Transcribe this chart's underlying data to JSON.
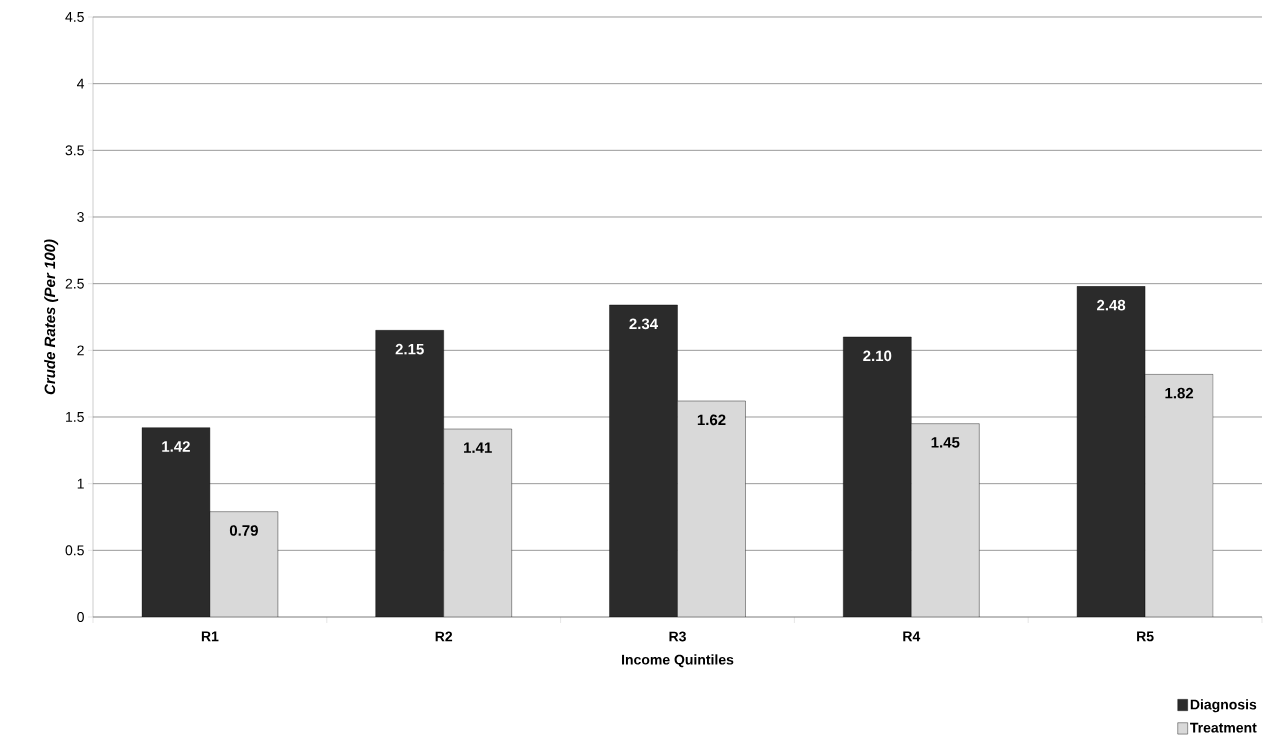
{
  "chart_data": {
    "type": "bar",
    "xlabel": "Income Quintiles",
    "ylabel": "*Crude Rates (Per 100)*",
    "categories": [
      "R1",
      "R2",
      "R3",
      "R4",
      "R5"
    ],
    "series": [
      {
        "name": "Diagnosis",
        "color": "#2b2b2b",
        "values": [
          1.42,
          2.15,
          2.34,
          2.1,
          2.48
        ],
        "value_labels": [
          "1.42",
          "2.15",
          "2.34",
          "2.10",
          "2.48"
        ]
      },
      {
        "name": "Treatment",
        "color": "#d9d9d9",
        "values": [
          0.79,
          1.41,
          1.62,
          1.45,
          1.82
        ],
        "value_labels": [
          "0.79",
          "1.41",
          "1.62",
          "1.45",
          "1.82"
        ]
      }
    ],
    "ylim": [
      0,
      4.5
    ],
    "yticks": [
      0,
      0.5,
      1,
      1.5,
      2,
      2.5,
      3,
      3.5,
      4,
      4.5
    ],
    "grid": "y",
    "legend": "bottom right"
  }
}
